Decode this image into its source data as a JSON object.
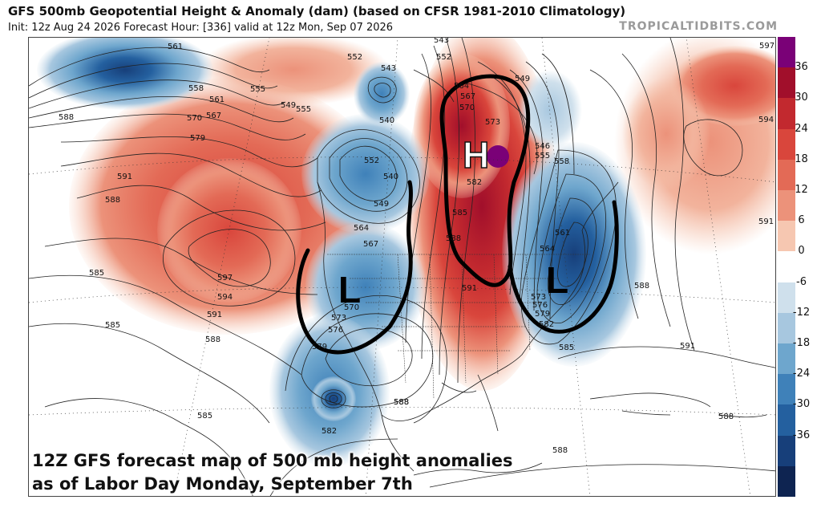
{
  "header": {
    "title": "GFS 500mb Geopotential Height & Anomaly (dam) (based on CFSR 1981-2010 Climatology)",
    "info": "Init: 12z Aug 24 2026   Forecast Hour: [336]   valid at 12z Mon, Sep 07 2026",
    "site": "TROPICALTIDBITS.COM"
  },
  "caption": {
    "line1": "12Z GFS forecast map of 500 mb height anomalies",
    "line2": "as of Labor Day Monday, September 7th"
  },
  "annotations": {
    "high": "H",
    "low_west": "L",
    "low_east": "L"
  },
  "contour_labels": {
    "l561a": "561",
    "l558a": "558",
    "l561b": "561",
    "l567a": "567",
    "l570a": "570",
    "l579a": "579",
    "l588a": "588",
    "l591a": "591",
    "l588b": "588",
    "l585a": "585",
    "l597a": "597",
    "l594a": "594",
    "l591b": "591",
    "l585b": "585",
    "l588c": "588",
    "l585c": "585",
    "l555a": "555",
    "l549a": "549",
    "l555b": "555",
    "l552a": "552",
    "l543a": "543",
    "l540a": "540",
    "l552b": "552",
    "l540b": "540",
    "l549b": "549",
    "l564a": "564",
    "l567b": "567",
    "l570b": "570",
    "l573a": "573",
    "l576a": "576",
    "l579b": "579",
    "l582a": "582",
    "l582b": "582",
    "l585d": "585",
    "l588d": "588",
    "l591c": "591",
    "l588e": "588",
    "l564b": "564",
    "l567c": "567",
    "l570c": "570",
    "l573b": "573",
    "l546a": "546",
    "l555c": "555",
    "l558b": "558",
    "l549c": "549",
    "l561c": "561",
    "l564c": "564",
    "l573c": "573",
    "l576b": "576",
    "l579c": "579",
    "l582c": "582",
    "l585e": "585",
    "l588f": "588",
    "l591d": "591",
    "l594b": "594",
    "l597b": "597",
    "l591e": "591",
    "l588g": "588",
    "l588h": "588",
    "l588i": "588",
    "l552c": "552",
    "l543b": "543"
  },
  "colorbar": {
    "ticks": [
      "36",
      "30",
      "24",
      "18",
      "12",
      "6",
      "0",
      "-6",
      "-12",
      "-18",
      "-24",
      "-30",
      "-36"
    ],
    "colors": [
      "#7a0177",
      "#a10f2b",
      "#c2292f",
      "#d9463c",
      "#e36a56",
      "#ec927a",
      "#f6c7b1",
      "#ffffff",
      "#cfe0ec",
      "#a7c7df",
      "#6ea6cd",
      "#3f81b9",
      "#24609f",
      "#173f7a",
      "#0e2451"
    ]
  }
}
